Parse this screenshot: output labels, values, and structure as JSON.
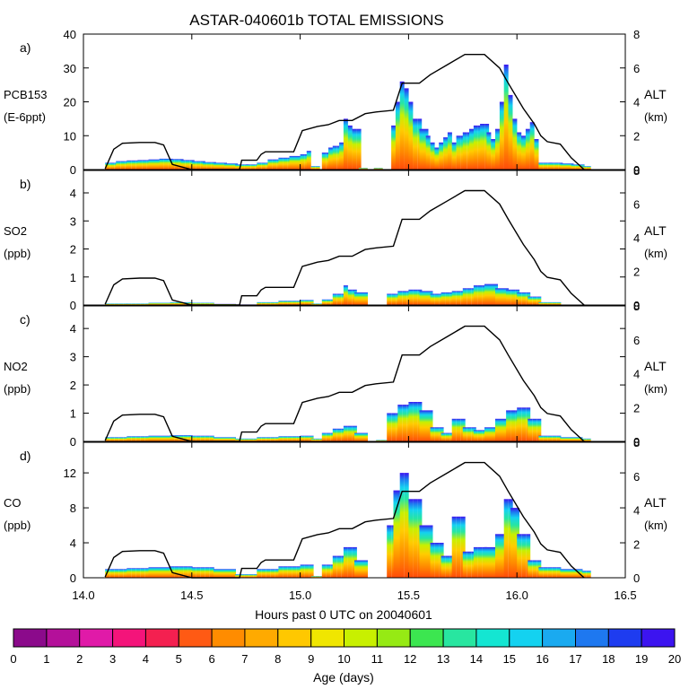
{
  "chart_data": {
    "type": "area",
    "title": "ASTAR-040601b TOTAL EMISSIONS",
    "xlabel": "Hours past 0 UTC on 20040601",
    "xlim": [
      14.0,
      16.5
    ],
    "xticks": [
      "14.0",
      "14.5",
      "15.0",
      "15.5",
      "16.0",
      "16.5"
    ],
    "xtick_values": [
      14.0,
      14.5,
      15.0,
      15.5,
      16.0,
      16.5
    ],
    "right_axis": {
      "label": "ALT",
      "unit": "(km)",
      "ylim": [
        0,
        8
      ],
      "ticks": [
        "0",
        "2",
        "4",
        "6",
        "8"
      ]
    },
    "colorbar": {
      "label": "Age (days)",
      "ticks": [
        "0",
        "1",
        "2",
        "3",
        "4",
        "5",
        "6",
        "7",
        "8",
        "9",
        "10",
        "11",
        "12",
        "13",
        "14",
        "15",
        "16",
        "17",
        "18",
        "19",
        "20"
      ],
      "colors": [
        "#8b0a8b",
        "#b4109a",
        "#e01aa8",
        "#f4147a",
        "#f42050",
        "#ff5a14",
        "#ff8c00",
        "#ffaa00",
        "#ffc800",
        "#f0e600",
        "#c8f000",
        "#96ea14",
        "#3ce650",
        "#28e6a0",
        "#14e6d2",
        "#14d2f0",
        "#1aaaf0",
        "#1e78f0",
        "#1e3cf0",
        "#3c14f0"
      ]
    },
    "altitude_profile": {
      "name": "Aircraft altitude (km)",
      "x": [
        14.1,
        14.14,
        14.18,
        14.26,
        14.33,
        14.37,
        14.41,
        14.5,
        14.55,
        14.63,
        14.72,
        14.73,
        14.8,
        14.82,
        14.84,
        14.92,
        14.97,
        15.01,
        15.08,
        15.13,
        15.18,
        15.24,
        15.3,
        15.35,
        15.43,
        15.47,
        15.55,
        15.6,
        15.68,
        15.76,
        15.85,
        15.92,
        15.96,
        16.03,
        16.08,
        16.11,
        16.14,
        16.2,
        16.25,
        16.31
      ],
      "y": [
        0.05,
        1.2,
        1.55,
        1.6,
        1.6,
        1.45,
        0.3,
        0.0,
        0.0,
        0.0,
        0.0,
        0.55,
        0.55,
        0.9,
        1.05,
        1.05,
        1.05,
        2.3,
        2.55,
        2.65,
        2.9,
        2.9,
        3.3,
        3.4,
        3.5,
        5.1,
        5.1,
        5.6,
        6.2,
        6.8,
        6.8,
        6.0,
        5.1,
        3.6,
        2.7,
        2.0,
        1.65,
        1.5,
        0.7,
        0.0
      ]
    },
    "panels": [
      {
        "letter": "a)",
        "species": "PCB153",
        "unit": "(E-6ppt)",
        "ylim": [
          0,
          40
        ],
        "yticks": [
          "0",
          "10",
          "20",
          "30",
          "40"
        ],
        "x": [
          14.1,
          14.15,
          14.2,
          14.25,
          14.3,
          14.35,
          14.4,
          14.45,
          14.5,
          14.55,
          14.6,
          14.65,
          14.7,
          14.75,
          14.8,
          14.85,
          14.9,
          14.95,
          15.0,
          15.03,
          15.05,
          15.08,
          15.1,
          15.13,
          15.15,
          15.18,
          15.2,
          15.22,
          15.24,
          15.27,
          15.3,
          15.34,
          15.37,
          15.4,
          15.42,
          15.44,
          15.46,
          15.48,
          15.5,
          15.52,
          15.55,
          15.58,
          15.6,
          15.62,
          15.64,
          15.66,
          15.68,
          15.7,
          15.72,
          15.75,
          15.78,
          15.8,
          15.83,
          15.86,
          15.88,
          15.9,
          15.92,
          15.94,
          15.96,
          15.98,
          16.0,
          16.02,
          16.04,
          16.06,
          16.08,
          16.1,
          16.15,
          16.2,
          16.25,
          16.3
        ],
        "total": [
          2.0,
          2.5,
          2.7,
          2.8,
          3.0,
          3.2,
          3.1,
          2.8,
          2.5,
          2.2,
          2.0,
          1.8,
          1.5,
          1.5,
          2.0,
          3.0,
          3.5,
          4.0,
          4.5,
          5.5,
          1.0,
          0,
          5.0,
          6.5,
          7.0,
          8.0,
          15.0,
          13.0,
          12.0,
          0.5,
          0,
          0.5,
          0,
          0,
          13.0,
          20.0,
          26.0,
          24.0,
          20.0,
          15.0,
          12.0,
          10.0,
          8.0,
          6.5,
          8.0,
          9.5,
          11.0,
          8.0,
          10.0,
          11.0,
          12.0,
          13.0,
          13.5,
          11.0,
          9.0,
          12.0,
          20.0,
          31.0,
          22.0,
          15.0,
          11.0,
          10.0,
          12.0,
          14.0,
          9.0,
          2.0,
          2.0,
          1.8,
          1.5,
          1.0
        ],
        "altitude_scale_max": 8
      },
      {
        "letter": "b)",
        "species": "SO2",
        "unit": "(ppb)",
        "ylim": [
          0,
          4.8
        ],
        "yticks": [
          "0",
          "1",
          "2",
          "3",
          "4"
        ],
        "x": [
          14.1,
          14.2,
          14.3,
          14.4,
          14.5,
          14.6,
          14.7,
          14.8,
          14.9,
          15.0,
          15.05,
          15.1,
          15.15,
          15.2,
          15.22,
          15.25,
          15.3,
          15.4,
          15.45,
          15.5,
          15.55,
          15.6,
          15.65,
          15.7,
          15.75,
          15.8,
          15.85,
          15.9,
          15.95,
          16.0,
          16.05,
          16.1,
          16.2,
          16.3
        ],
        "total": [
          0.05,
          0.05,
          0.08,
          0.1,
          0.08,
          0.04,
          0.02,
          0.1,
          0.15,
          0.18,
          0.05,
          0.2,
          0.4,
          0.7,
          0.55,
          0.45,
          0,
          0.4,
          0.5,
          0.55,
          0.5,
          0.4,
          0.45,
          0.5,
          0.6,
          0.7,
          0.75,
          0.6,
          0.55,
          0.45,
          0.3,
          0.1,
          0,
          0
        ],
        "altitude_scale_max": 8
      },
      {
        "letter": "c)",
        "species": "NO2",
        "unit": "(ppb)",
        "ylim": [
          0,
          4.8
        ],
        "yticks": [
          "0",
          "1",
          "2",
          "3",
          "4"
        ],
        "x": [
          14.1,
          14.2,
          14.3,
          14.4,
          14.5,
          14.6,
          14.7,
          14.8,
          14.9,
          15.0,
          15.05,
          15.1,
          15.15,
          15.2,
          15.25,
          15.3,
          15.35,
          15.4,
          15.45,
          15.5,
          15.55,
          15.6,
          15.65,
          15.7,
          15.75,
          15.8,
          15.85,
          15.9,
          15.95,
          16.0,
          16.05,
          16.1,
          16.2,
          16.3
        ],
        "total": [
          0.15,
          0.18,
          0.2,
          0.22,
          0.2,
          0.15,
          0.1,
          0.15,
          0.18,
          0.2,
          0.1,
          0.3,
          0.45,
          0.55,
          0.3,
          0,
          0.05,
          1.0,
          1.3,
          1.4,
          1.1,
          0.5,
          0.3,
          0.8,
          0.5,
          0.4,
          0.5,
          0.8,
          1.1,
          1.2,
          0.8,
          0.2,
          0.15,
          0.1
        ],
        "altitude_scale_max": 8
      },
      {
        "letter": "d)",
        "species": "CO",
        "unit": "(ppb)",
        "ylim": [
          0,
          15.5
        ],
        "yticks": [
          "0",
          "4",
          "8",
          "12"
        ],
        "x": [
          14.1,
          14.2,
          14.3,
          14.4,
          14.5,
          14.6,
          14.7,
          14.8,
          14.9,
          15.0,
          15.05,
          15.1,
          15.15,
          15.2,
          15.25,
          15.3,
          15.35,
          15.4,
          15.43,
          15.46,
          15.5,
          15.55,
          15.6,
          15.65,
          15.7,
          15.75,
          15.8,
          15.85,
          15.9,
          15.94,
          15.97,
          16.0,
          16.05,
          16.1,
          16.2,
          16.3
        ],
        "total": [
          1.0,
          1.1,
          1.2,
          1.3,
          1.2,
          1.0,
          0.4,
          1.0,
          1.3,
          1.5,
          0.2,
          1.5,
          2.5,
          3.5,
          2.0,
          0,
          0,
          6.0,
          10.0,
          12.0,
          9.0,
          6.0,
          4.0,
          2.5,
          7.0,
          3.0,
          3.5,
          3.5,
          5.0,
          9.0,
          8.0,
          5.0,
          2.0,
          1.2,
          1.0,
          0.8
        ],
        "altitude_scale_max": 8
      }
    ]
  }
}
